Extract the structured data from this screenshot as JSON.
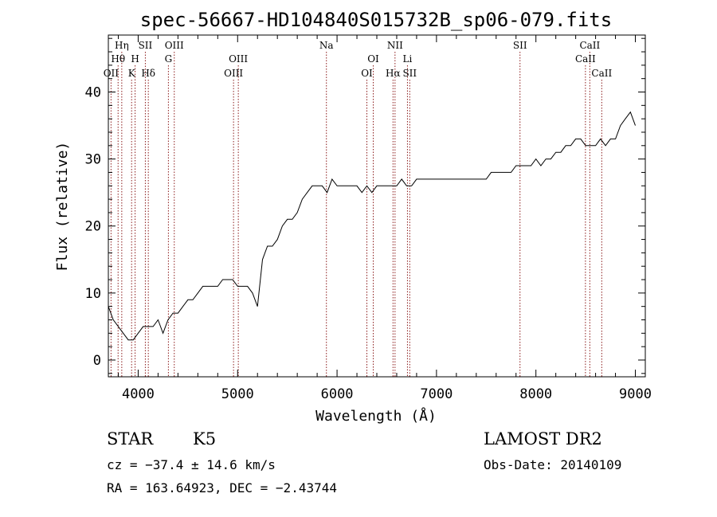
{
  "chart_data": {
    "type": "line",
    "title": "spec-56667-HD104840S015732B_sp06-079.fits",
    "xlabel": "Wavelength (Å)",
    "ylabel": "Flux (relative)",
    "xlim": [
      3700,
      9100
    ],
    "ylim": [
      -2.5,
      48.5
    ],
    "x_ticks": [
      4000,
      5000,
      6000,
      7000,
      8000,
      9000
    ],
    "y_ticks": [
      0,
      10,
      20,
      30,
      40
    ],
    "grid": false,
    "line_color": "#000000",
    "marker_color": "#8b1a1a",
    "series": [
      {
        "x": [
          3700,
          3750,
          3800,
          3850,
          3900,
          3950,
          4000,
          4050,
          4100,
          4150,
          4200,
          4250,
          4300,
          4350,
          4400,
          4450,
          4500,
          4550,
          4600,
          4650,
          4700,
          4750,
          4800,
          4850,
          4900,
          4950,
          5000,
          5050,
          5100,
          5150,
          5200,
          5250,
          5300,
          5350,
          5400,
          5450,
          5500,
          5550,
          5600,
          5650,
          5700,
          5750,
          5800,
          5850,
          5900,
          5950,
          6000,
          6050,
          6100,
          6150,
          6200,
          6250,
          6300,
          6350,
          6400,
          6450,
          6500,
          6550,
          6600,
          6650,
          6700,
          6750,
          6800,
          6850,
          6900,
          6950,
          7000,
          7050,
          7100,
          7150,
          7200,
          7250,
          7300,
          7350,
          7400,
          7450,
          7500,
          7550,
          7600,
          7650,
          7700,
          7750,
          7800,
          7850,
          7900,
          7950,
          8000,
          8050,
          8100,
          8150,
          8200,
          8250,
          8300,
          8350,
          8400,
          8450,
          8500,
          8550,
          8600,
          8650,
          8700,
          8750,
          8800,
          8850,
          8900,
          8950,
          9000
        ],
        "y": [
          8,
          6,
          5,
          4,
          3,
          3,
          4,
          5,
          5,
          5,
          6,
          4,
          6,
          7,
          7,
          8,
          9,
          9,
          10,
          11,
          11,
          11,
          11,
          12,
          12,
          12,
          11,
          11,
          11,
          10,
          8,
          15,
          17,
          17,
          18,
          20,
          21,
          21,
          22,
          24,
          25,
          26,
          26,
          26,
          25,
          27,
          26,
          26,
          26,
          26,
          26,
          25,
          26,
          25,
          26,
          26,
          26,
          26,
          26,
          27,
          26,
          26,
          27,
          27,
          27,
          27,
          27,
          27,
          27,
          27,
          27,
          27,
          27,
          27,
          27,
          27,
          27,
          28,
          28,
          28,
          28,
          28,
          29,
          29,
          29,
          29,
          30,
          29,
          30,
          30,
          31,
          31,
          32,
          32,
          33,
          33,
          32,
          32,
          32,
          33,
          32,
          33,
          33,
          35,
          36,
          37,
          35
        ]
      }
    ],
    "line_markers": [
      {
        "label": "Hη",
        "x": 3835,
        "row": 0
      },
      {
        "label": "Hθ",
        "x": 3798,
        "row": 1
      },
      {
        "label": "OII",
        "x": 3727,
        "row": 2
      },
      {
        "label": "K",
        "x": 3934,
        "row": 2
      },
      {
        "label": "H",
        "x": 3969,
        "row": 1
      },
      {
        "label": "SII",
        "x": 4072,
        "row": 0
      },
      {
        "label": "Hδ",
        "x": 4102,
        "row": 2
      },
      {
        "label": "OIII",
        "x": 4363,
        "row": 0
      },
      {
        "label": "G",
        "x": 4304,
        "row": 1
      },
      {
        "label": "OIII",
        "x": 5007,
        "row": 1
      },
      {
        "label": "OIII",
        "x": 4959,
        "row": 2
      },
      {
        "label": "Na",
        "x": 5893,
        "row": 0
      },
      {
        "label": "OI",
        "x": 6364,
        "row": 1
      },
      {
        "label": "OI",
        "x": 6300,
        "row": 2
      },
      {
        "label": "NII",
        "x": 6583,
        "row": 0
      },
      {
        "label": "Hα",
        "x": 6563,
        "row": 2
      },
      {
        "label": "Li",
        "x": 6708,
        "row": 1
      },
      {
        "label": "SII",
        "x": 6731,
        "row": 2
      },
      {
        "label": "SII",
        "x": 7840,
        "row": 0
      },
      {
        "label": "CaII",
        "x": 8542,
        "row": 0
      },
      {
        "label": "CaII",
        "x": 8498,
        "row": 1
      },
      {
        "label": "CaII",
        "x": 8662,
        "row": 2
      }
    ]
  },
  "info": {
    "class_label": "STAR",
    "subclass_label": "K5",
    "redshift_text": "cz = −37.4 ± 14.6 km/s",
    "coords_text": "RA = 163.64923, DEC =  −2.43744",
    "survey_label": "LAMOST DR2",
    "obs_date_text": "Obs-Date: 20140109"
  }
}
